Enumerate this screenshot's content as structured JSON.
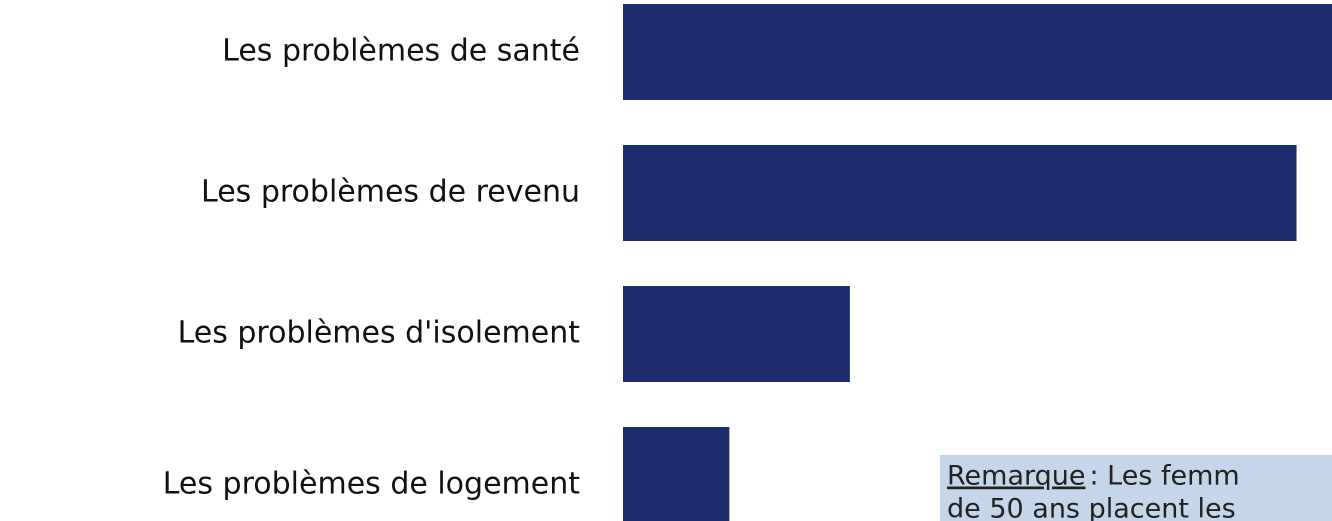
{
  "chart_data": {
    "type": "hbar",
    "categories": [
      "Les problèmes de santé",
      "Les problèmes de revenu",
      "Les problèmes d'isolement",
      "Les problèmes de logement"
    ],
    "values": [
      100,
      95,
      32,
      15
    ],
    "color": "#1f2d6e",
    "annotation": {
      "label": "Remarque ",
      "lines": [
        ": Les femm",
        "de 50 ans placent les"
      ]
    }
  }
}
